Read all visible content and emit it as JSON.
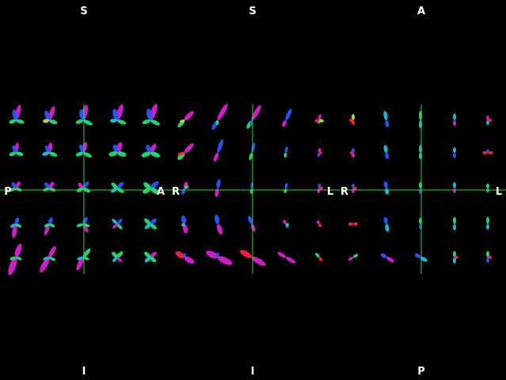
{
  "viewer": {
    "background": "#000000",
    "crosshair_color": "#2fd82f",
    "panels": [
      {
        "view": "coronal",
        "labels": {
          "top": "S",
          "bottom": "I",
          "left": "P",
          "right": "A"
        }
      },
      {
        "view": "sagittal",
        "labels": {
          "top": "S",
          "bottom": "I",
          "left": "R",
          "right": "L"
        }
      },
      {
        "view": "axial",
        "labels": {
          "top": "A",
          "bottom": "P",
          "left": "R",
          "right": "L"
        }
      }
    ]
  }
}
